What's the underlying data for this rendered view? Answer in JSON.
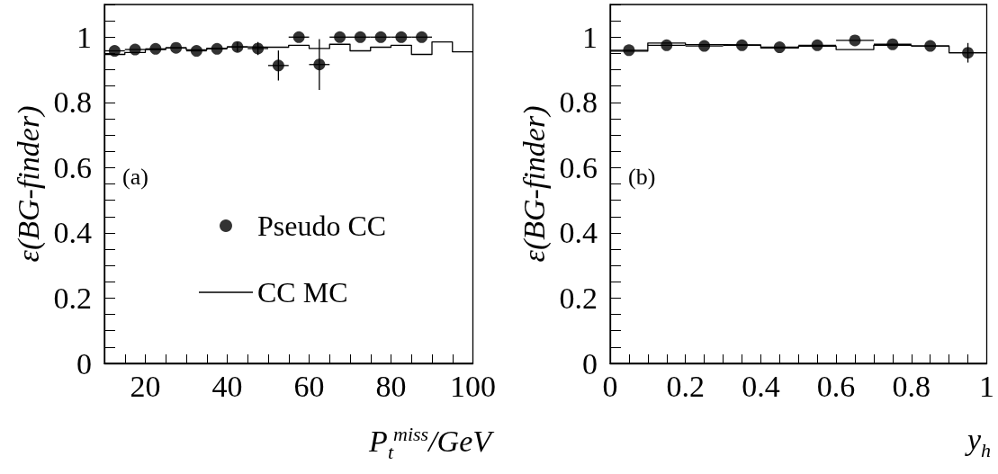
{
  "chart_data": [
    {
      "type": "scatter",
      "ylabel": "ε(BG-finder)",
      "xlabel": "P$_{t}$$^{miss}$/GeV",
      "annotations": [
        "(a)"
      ],
      "legend": "center",
      "marker": "circle",
      "xlim": [
        10,
        100
      ],
      "xticks": [
        {
          "value": 15,
          "label": null
        },
        20,
        {
          "value": 25,
          "label": null
        },
        {
          "value": 30,
          "label": null
        },
        {
          "value": 35,
          "label": null
        },
        40,
        {
          "value": 45,
          "label": null
        },
        {
          "value": 50,
          "label": null
        },
        {
          "value": 55,
          "label": null
        },
        60,
        {
          "value": 65,
          "label": null
        },
        {
          "value": 70,
          "label": null
        },
        {
          "value": 75,
          "label": null
        },
        80,
        {
          "value": 85,
          "label": null
        },
        {
          "value": 90,
          "label": null
        },
        {
          "value": 95,
          "label": null
        },
        100
      ],
      "ylim": [
        0,
        1.1
      ],
      "yticks": [
        0,
        {
          "value": 0.05,
          "label": null
        },
        {
          "value": 0.1,
          "label": null
        },
        {
          "value": 0.15,
          "label": null
        },
        0.2,
        {
          "value": 0.25,
          "label": null
        },
        {
          "value": 0.3,
          "label": null
        },
        {
          "value": 0.35,
          "label": null
        },
        0.4,
        {
          "value": 0.45,
          "label": null
        },
        {
          "value": 0.5,
          "label": null
        },
        {
          "value": 0.55,
          "label": null
        },
        0.6,
        {
          "value": 0.65,
          "label": null
        },
        {
          "value": 0.7,
          "label": null
        },
        {
          "value": 0.75,
          "label": null
        },
        0.8,
        {
          "value": 0.85,
          "label": null
        },
        {
          "value": 0.9,
          "label": null
        },
        {
          "value": 0.95,
          "label": null
        },
        1,
        {
          "value": 1.05,
          "label": null
        },
        {
          "value": 1.1,
          "label": null
        }
      ],
      "series": [
        {
          "name": "Pseudo CC",
          "color": "#000000",
          "x": [
            12.5,
            17.5,
            22.5,
            27.5,
            32.5,
            37.5,
            42.5,
            47.5,
            52.5,
            57.5,
            62.5,
            67.5,
            72.5,
            77.5,
            82.5,
            87.5
          ],
          "values": [
            0.958,
            0.962,
            0.964,
            0.967,
            0.958,
            0.964,
            0.97,
            0.965,
            0.913,
            1.0,
            0.916,
            1.0,
            1.0,
            1.0,
            1.0,
            1.0
          ],
          "errors": [
            null,
            null,
            null,
            null,
            null,
            null,
            0.015,
            0.02,
            0.046,
            null,
            0.078,
            null,
            null,
            null,
            null,
            null
          ],
          "xerrors": [
            2.5,
            2.5,
            2.5,
            2.5,
            2.5,
            2.5,
            2.5,
            2.5,
            2.5,
            2.5,
            2.5,
            2.5,
            2.5,
            2.5,
            2.5,
            2.5
          ]
        },
        {
          "name": "CC MC",
          "type": "histogram",
          "color": "#000000",
          "bins": [
            10,
            15,
            20,
            25,
            30,
            35,
            40,
            45,
            50,
            55,
            60,
            65,
            70,
            75,
            80,
            85,
            90,
            95,
            100
          ],
          "values": [
            0.947,
            0.953,
            0.962,
            0.967,
            0.961,
            0.966,
            0.97,
            0.969,
            0.969,
            0.975,
            0.965,
            0.978,
            0.958,
            0.969,
            0.975,
            0.947,
            0.985,
            0.955
          ]
        }
      ]
    },
    {
      "type": "scatter",
      "ylabel": "ε(BG-finder)",
      "xlabel": "y$_{h}$",
      "annotations": [
        "(b)"
      ],
      "marker": "circle",
      "xlim": [
        0,
        1
      ],
      "xticks": [
        0,
        {
          "value": 0.05,
          "label": null
        },
        {
          "value": 0.1,
          "label": null
        },
        {
          "value": 0.15,
          "label": null
        },
        0.2,
        {
          "value": 0.25,
          "label": null
        },
        {
          "value": 0.3,
          "label": null
        },
        {
          "value": 0.35,
          "label": null
        },
        0.4,
        {
          "value": 0.45,
          "label": null
        },
        {
          "value": 0.5,
          "label": null
        },
        {
          "value": 0.55,
          "label": null
        },
        0.6,
        {
          "value": 0.65,
          "label": null
        },
        {
          "value": 0.7,
          "label": null
        },
        {
          "value": 0.75,
          "label": null
        },
        0.8,
        {
          "value": 0.85,
          "label": null
        },
        {
          "value": 0.9,
          "label": null
        },
        {
          "value": 0.95,
          "label": null
        },
        1
      ],
      "ylim": [
        0,
        1.1
      ],
      "yticks": [
        0,
        {
          "value": 0.05,
          "label": null
        },
        {
          "value": 0.1,
          "label": null
        },
        {
          "value": 0.15,
          "label": null
        },
        0.2,
        {
          "value": 0.25,
          "label": null
        },
        {
          "value": 0.3,
          "label": null
        },
        {
          "value": 0.35,
          "label": null
        },
        0.4,
        {
          "value": 0.45,
          "label": null
        },
        {
          "value": 0.5,
          "label": null
        },
        {
          "value": 0.55,
          "label": null
        },
        0.6,
        {
          "value": 0.65,
          "label": null
        },
        {
          "value": 0.7,
          "label": null
        },
        {
          "value": 0.75,
          "label": null
        },
        0.8,
        {
          "value": 0.85,
          "label": null
        },
        {
          "value": 0.9,
          "label": null
        },
        {
          "value": 0.95,
          "label": null
        },
        1,
        {
          "value": 1.05,
          "label": null
        },
        {
          "value": 1.1,
          "label": null
        }
      ],
      "series": [
        {
          "color": "#000000",
          "x": [
            0.05,
            0.15,
            0.25,
            0.35,
            0.45,
            0.55,
            0.65,
            0.75,
            0.85,
            0.95
          ],
          "values": [
            0.96,
            0.975,
            0.973,
            0.975,
            0.969,
            0.975,
            0.99,
            0.978,
            0.973,
            0.952
          ],
          "errors": [
            null,
            null,
            null,
            null,
            null,
            null,
            null,
            null,
            null,
            0.03
          ],
          "xerrors": [
            0.05,
            0.05,
            0.05,
            0.05,
            0.05,
            0.05,
            0.05,
            0.05,
            0.05,
            0.05
          ]
        },
        {
          "type": "histogram",
          "color": "#000000",
          "bins": [
            0,
            0.1,
            0.2,
            0.3,
            0.4,
            0.5,
            0.6,
            0.7,
            0.8,
            0.9,
            1.0
          ],
          "values": [
            0.957,
            0.982,
            0.977,
            0.976,
            0.967,
            0.972,
            0.962,
            0.975,
            0.973,
            0.952
          ]
        }
      ]
    }
  ]
}
